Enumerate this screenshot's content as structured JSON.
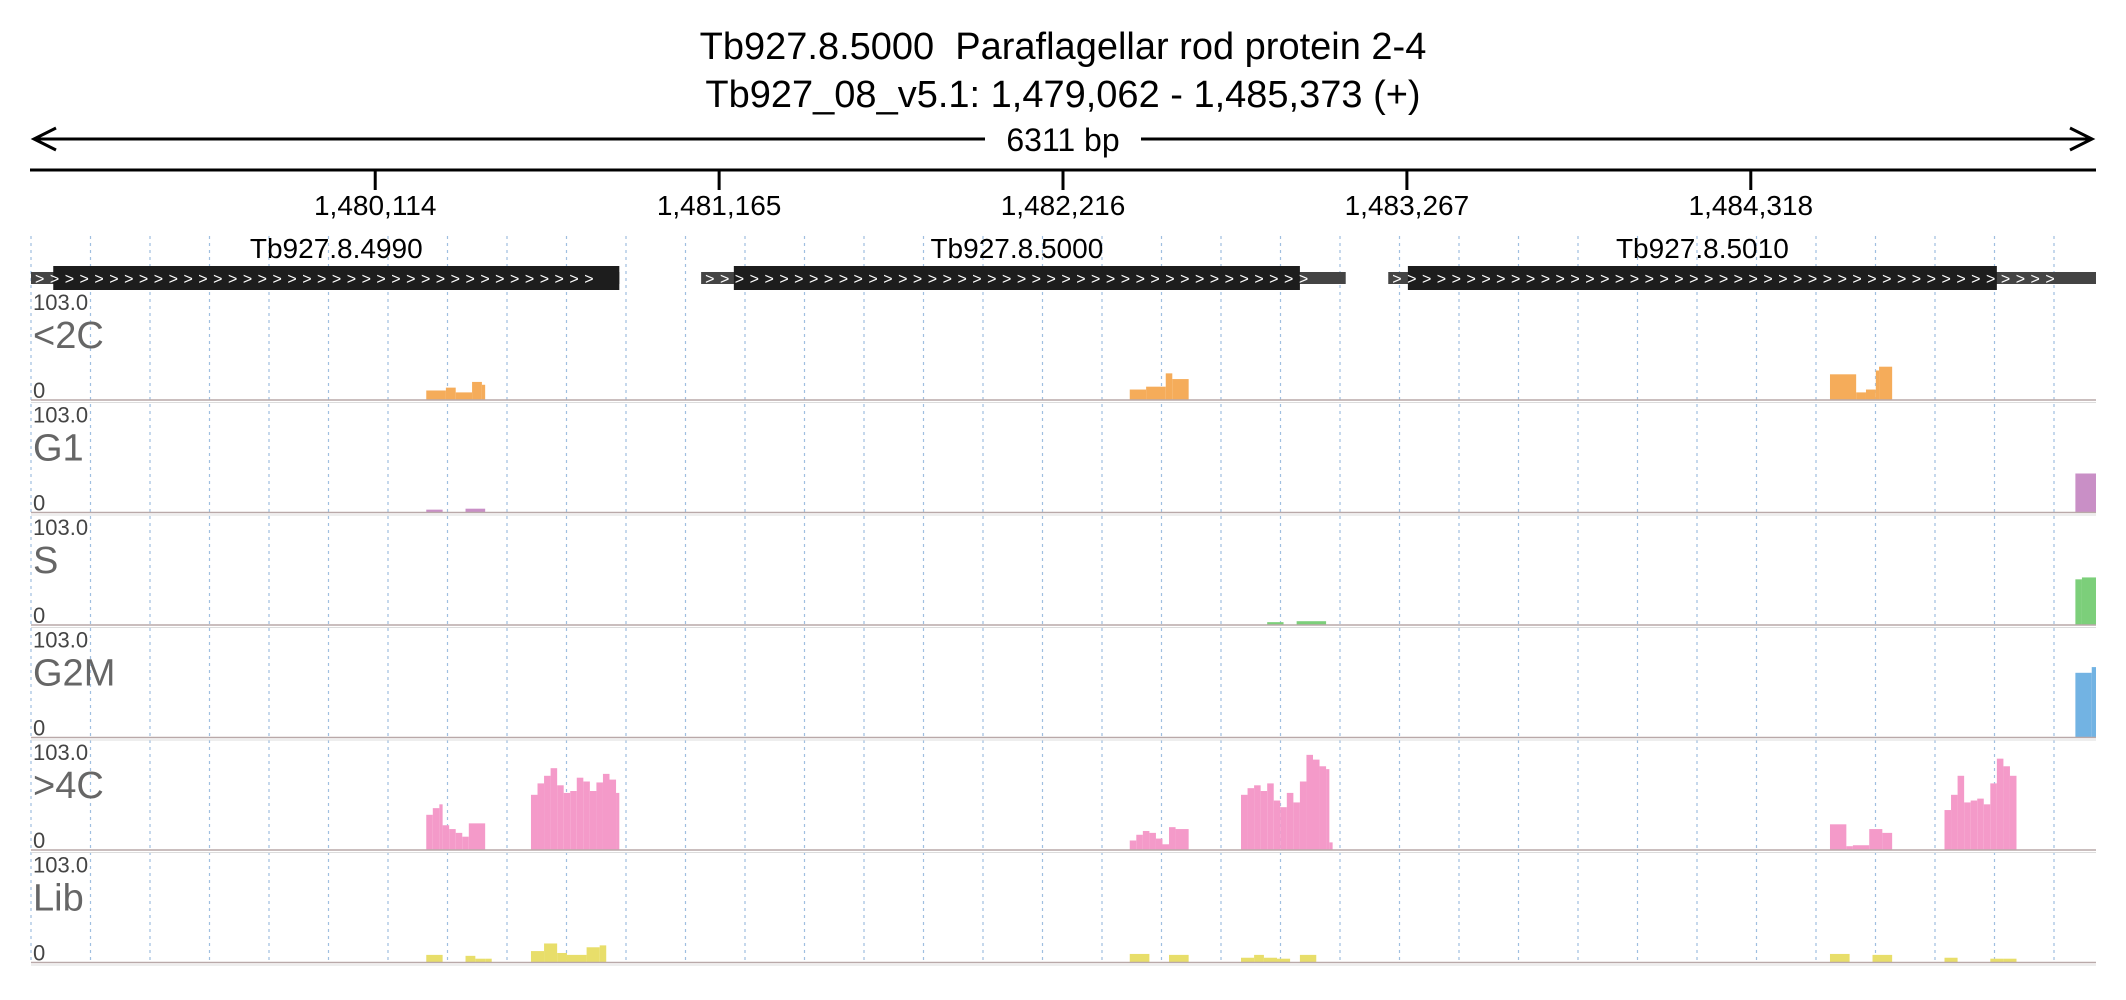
{
  "header": {
    "title_line1": "Tb927.8.5000  Paraflagellar rod protein 2-4",
    "title_line2": "Tb927_08_v5.1: 1,479,062 - 1,485,373 (+)",
    "span_label": "6311 bp"
  },
  "colors": {
    "<2C": "#f5ac5a",
    "G1": "#c98fc6",
    "S": "#7ccf7a",
    "G2M": "#72b3e3",
    ">4C": "#f49ac9",
    "Lib": "#e8de6a",
    "gene": "#1d1d1d",
    "utr": "#444444"
  },
  "chart_data": {
    "type": "area",
    "x_range": [
      1479062,
      1485373
    ],
    "x_ticks": [
      1480114,
      1481165,
      1482216,
      1483267,
      1484318
    ],
    "x_tick_labels": [
      "1,480,114",
      "1,481,165",
      "1,482,216",
      "1,483,267",
      "1,484,318"
    ],
    "genes": [
      {
        "id": "Tb927.8.4990",
        "start": 1479062,
        "cds_start": 1479130,
        "cds_end": 1480860,
        "end": 1480860
      },
      {
        "id": "Tb927.8.5000",
        "start": 1481110,
        "cds_start": 1481210,
        "cds_end": 1482940,
        "end": 1483080
      },
      {
        "id": "Tb927.8.5010",
        "start": 1483210,
        "cds_start": 1483270,
        "cds_end": 1485070,
        "end": 1485373
      }
    ],
    "tracks": [
      {
        "name": "<2C",
        "ymax": "103.0",
        "ymin": "0",
        "intervals": [
          [
            1480270,
            1480330,
            10
          ],
          [
            1480330,
            1480360,
            13
          ],
          [
            1480360,
            1480410,
            8
          ],
          [
            1480410,
            1480440,
            19
          ],
          [
            1480440,
            1480450,
            16
          ],
          [
            1482420,
            1482470,
            11
          ],
          [
            1482470,
            1482530,
            14
          ],
          [
            1482530,
            1482550,
            28
          ],
          [
            1482550,
            1482600,
            22
          ],
          [
            1484560,
            1484640,
            27
          ],
          [
            1484640,
            1484670,
            8
          ],
          [
            1484670,
            1484700,
            11
          ],
          [
            1484700,
            1484710,
            31
          ],
          [
            1484710,
            1484750,
            35
          ]
        ]
      },
      {
        "name": "G1",
        "ymax": "103.0",
        "ymin": "0",
        "intervals": [
          [
            1480270,
            1480320,
            3
          ],
          [
            1480390,
            1480450,
            4
          ],
          [
            1485310,
            1485373,
            41
          ]
        ]
      },
      {
        "name": "S",
        "ymax": "103.0",
        "ymin": "0",
        "intervals": [
          [
            1482840,
            1482890,
            3
          ],
          [
            1482930,
            1483020,
            4
          ],
          [
            1485310,
            1485330,
            48
          ],
          [
            1485330,
            1485373,
            50
          ]
        ]
      },
      {
        "name": "G2M",
        "ymax": "103.0",
        "ymin": "0",
        "intervals": [
          [
            1485310,
            1485360,
            68
          ],
          [
            1485360,
            1485373,
            74
          ]
        ]
      },
      {
        "name": ">4C",
        "ymax": "103.0",
        "ymin": "0",
        "intervals": [
          [
            1480270,
            1480290,
            37
          ],
          [
            1480290,
            1480310,
            44
          ],
          [
            1480310,
            1480320,
            48
          ],
          [
            1480320,
            1480340,
            26
          ],
          [
            1480340,
            1480360,
            22
          ],
          [
            1480360,
            1480380,
            18
          ],
          [
            1480380,
            1480400,
            14
          ],
          [
            1480400,
            1480450,
            28
          ],
          [
            1480590,
            1480610,
            58
          ],
          [
            1480610,
            1480630,
            70
          ],
          [
            1480630,
            1480650,
            78
          ],
          [
            1480650,
            1480670,
            86
          ],
          [
            1480670,
            1480690,
            68
          ],
          [
            1480690,
            1480710,
            60
          ],
          [
            1480710,
            1480730,
            62
          ],
          [
            1480730,
            1480750,
            76
          ],
          [
            1480750,
            1480770,
            72
          ],
          [
            1480770,
            1480790,
            62
          ],
          [
            1480790,
            1480810,
            71
          ],
          [
            1480810,
            1480830,
            80
          ],
          [
            1480830,
            1480850,
            74
          ],
          [
            1480850,
            1480860,
            60
          ],
          [
            1482420,
            1482440,
            10
          ],
          [
            1482440,
            1482460,
            16
          ],
          [
            1482460,
            1482480,
            20
          ],
          [
            1482480,
            1482500,
            18
          ],
          [
            1482500,
            1482520,
            12
          ],
          [
            1482520,
            1482540,
            6
          ],
          [
            1482540,
            1482560,
            24
          ],
          [
            1482560,
            1482600,
            22
          ],
          [
            1482760,
            1482780,
            58
          ],
          [
            1482780,
            1482800,
            65
          ],
          [
            1482800,
            1482820,
            68
          ],
          [
            1482820,
            1482840,
            62
          ],
          [
            1482840,
            1482860,
            70
          ],
          [
            1482860,
            1482880,
            52
          ],
          [
            1482880,
            1482900,
            45
          ],
          [
            1482900,
            1482920,
            60
          ],
          [
            1482920,
            1482940,
            50
          ],
          [
            1482940,
            1482960,
            72
          ],
          [
            1482960,
            1482980,
            100
          ],
          [
            1482980,
            1483000,
            95
          ],
          [
            1483000,
            1483020,
            88
          ],
          [
            1483020,
            1483030,
            85
          ],
          [
            1483030,
            1483040,
            8
          ],
          [
            1484560,
            1484610,
            27
          ],
          [
            1484610,
            1484630,
            4
          ],
          [
            1484630,
            1484680,
            5
          ],
          [
            1484680,
            1484720,
            22
          ],
          [
            1484720,
            1484750,
            18
          ],
          [
            1484910,
            1484930,
            42
          ],
          [
            1484930,
            1484950,
            58
          ],
          [
            1484950,
            1484970,
            78
          ],
          [
            1484970,
            1484990,
            50
          ],
          [
            1484990,
            1485010,
            52
          ],
          [
            1485010,
            1485030,
            54
          ],
          [
            1485030,
            1485050,
            48
          ],
          [
            1485050,
            1485070,
            70
          ],
          [
            1485070,
            1485090,
            96
          ],
          [
            1485090,
            1485110,
            88
          ],
          [
            1485110,
            1485130,
            78
          ]
        ]
      },
      {
        "name": "Lib",
        "ymax": "103.0",
        "ymin": "0",
        "intervals": [
          [
            1480270,
            1480320,
            8
          ],
          [
            1480390,
            1480420,
            7
          ],
          [
            1480420,
            1480450,
            4
          ],
          [
            1480450,
            1480470,
            4
          ],
          [
            1480590,
            1480630,
            12
          ],
          [
            1480630,
            1480670,
            20
          ],
          [
            1480670,
            1480700,
            10
          ],
          [
            1480700,
            1480760,
            8
          ],
          [
            1480760,
            1480800,
            16
          ],
          [
            1480800,
            1480820,
            18
          ],
          [
            1482420,
            1482480,
            9
          ],
          [
            1482540,
            1482600,
            8
          ],
          [
            1482760,
            1482800,
            5
          ],
          [
            1482800,
            1482830,
            8
          ],
          [
            1482830,
            1482870,
            5
          ],
          [
            1482870,
            1482910,
            4
          ],
          [
            1482940,
            1482990,
            8
          ],
          [
            1484560,
            1484620,
            9
          ],
          [
            1484690,
            1484750,
            8
          ],
          [
            1484910,
            1484950,
            5
          ],
          [
            1485050,
            1485090,
            4
          ],
          [
            1485090,
            1485130,
            4
          ]
        ]
      }
    ]
  }
}
